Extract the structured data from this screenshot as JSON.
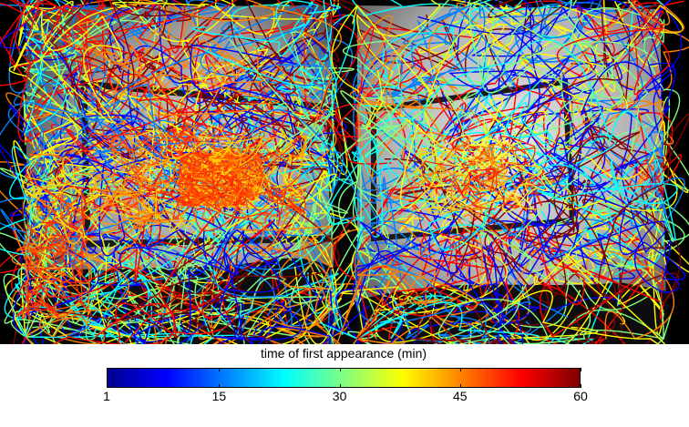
{
  "colorbar": {
    "title": "time of first appearance (min)",
    "min": 1,
    "max": 60,
    "ticks": [
      1,
      15,
      30,
      45,
      60
    ],
    "tick_labels": [
      "1",
      "15",
      "30",
      "45",
      "60"
    ],
    "colormap": [
      "#00008f",
      "#0000ff",
      "#0080ff",
      "#00ffff",
      "#80ff80",
      "#ffff00",
      "#ff8000",
      "#ff0000",
      "#800000"
    ]
  },
  "scene": {
    "description_tags": [
      "flight-tracks",
      "insect-trajectories",
      "window-frame",
      "grayscale-background"
    ],
    "cluster_colors": [
      "#ff2a00",
      "#ff6000",
      "#ffd000"
    ]
  }
}
